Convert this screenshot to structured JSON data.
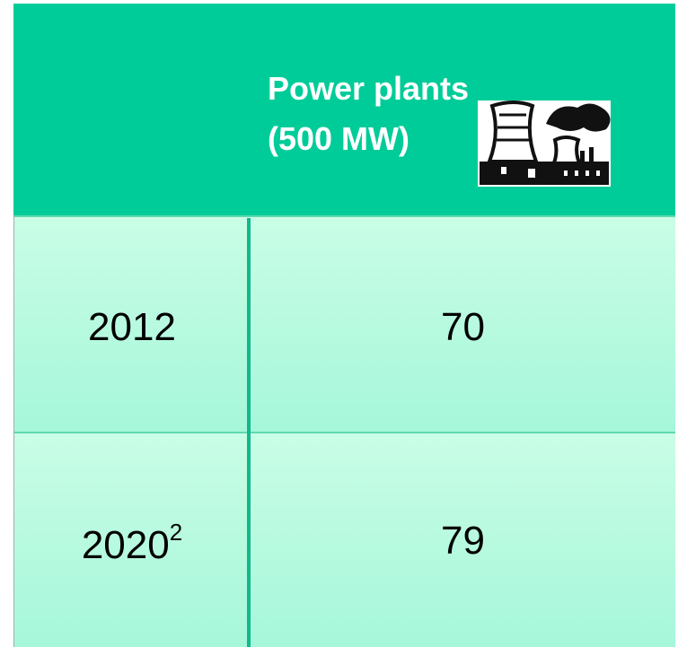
{
  "table": {
    "header": [
      "Power plants",
      "(500 MW)"
    ],
    "rows": [
      {
        "year": "2012",
        "value": 70
      },
      {
        "year": "2020",
        "note": "2",
        "value": 79
      }
    ]
  }
}
